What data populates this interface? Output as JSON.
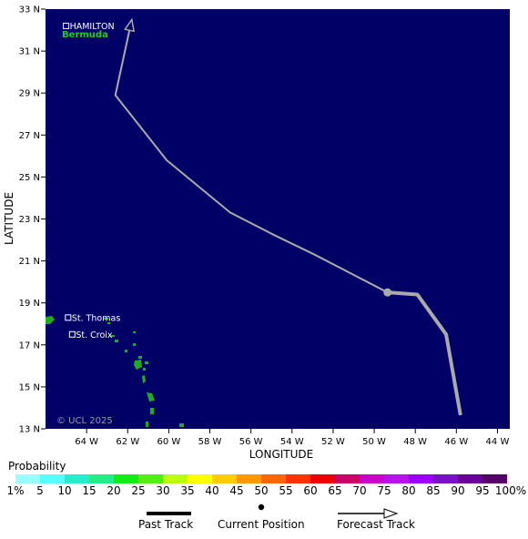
{
  "map": {
    "background": "#000066",
    "x_axis": {
      "title": "LONGITUDE",
      "ticks": [
        {
          "lon": -64,
          "label": "64 W"
        },
        {
          "lon": -62,
          "label": "62 W"
        },
        {
          "lon": -60,
          "label": "60 W"
        },
        {
          "lon": -58,
          "label": "58 W"
        },
        {
          "lon": -56,
          "label": "56 W"
        },
        {
          "lon": -54,
          "label": "54 W"
        },
        {
          "lon": -52,
          "label": "52 W"
        },
        {
          "lon": -50,
          "label": "50 W"
        },
        {
          "lon": -48,
          "label": "48 W"
        },
        {
          "lon": -46,
          "label": "46 W"
        },
        {
          "lon": -44,
          "label": "44 W"
        }
      ],
      "range": [
        -66.0,
        -43.4
      ]
    },
    "y_axis": {
      "title": "LATITUDE",
      "ticks": [
        {
          "lat": 33,
          "label": "33 N"
        },
        {
          "lat": 31,
          "label": "31 N"
        },
        {
          "lat": 29,
          "label": "29 N"
        },
        {
          "lat": 27,
          "label": "27 N"
        },
        {
          "lat": 25,
          "label": "25 N"
        },
        {
          "lat": 23,
          "label": "23 N"
        },
        {
          "lat": 21,
          "label": "21 N"
        },
        {
          "lat": 19,
          "label": "19 N"
        },
        {
          "lat": 17,
          "label": "17 N"
        },
        {
          "lat": 15,
          "label": "15 N"
        },
        {
          "lat": 13,
          "label": "13 N"
        }
      ],
      "range": [
        13,
        33
      ]
    },
    "places": [
      {
        "name": "HAMILTON",
        "lon": -65.0,
        "lat": 32.2
      },
      {
        "name": "St. Thomas",
        "lon": -64.9,
        "lat": 18.3
      },
      {
        "name": "St. Croix",
        "lon": -64.7,
        "lat": 17.5
      }
    ],
    "region_label": {
      "text": "Bermuda",
      "lon": -65.2,
      "lat": 31.65
    },
    "copyright": "© UCL 2025",
    "past_track": [
      [
        -45.8,
        13.65
      ],
      [
        -46.5,
        17.5
      ],
      [
        -47.9,
        19.4
      ],
      [
        -49.35,
        19.5
      ]
    ],
    "current_position": [
      -49.35,
      19.5
    ],
    "forecast_track": [
      [
        -49.35,
        19.5
      ],
      [
        -52.9,
        21.3
      ],
      [
        -54.8,
        22.2
      ],
      [
        -57.0,
        23.3
      ],
      [
        -60.1,
        25.8
      ],
      [
        -62.6,
        28.9
      ],
      [
        -61.8,
        32.5
      ]
    ],
    "track_color": "#aaaaaa"
  },
  "legend": {
    "title": "Probability",
    "colors": [
      "#99ffff",
      "#55ffff",
      "#22eecc",
      "#22ee88",
      "#11ee11",
      "#55ee11",
      "#bbff11",
      "#ffff00",
      "#ffcc00",
      "#ff9900",
      "#ff6600",
      "#ff3300",
      "#ee0000",
      "#cc0066",
      "#cc00cc",
      "#bb11ee",
      "#9900ff",
      "#7711cc",
      "#660099",
      "#550066"
    ],
    "labels": [
      {
        "text": "1%",
        "pos": 0
      },
      {
        "text": "5",
        "pos": 1
      },
      {
        "text": "10",
        "pos": 2
      },
      {
        "text": "15",
        "pos": 3
      },
      {
        "text": "20",
        "pos": 4
      },
      {
        "text": "25",
        "pos": 5
      },
      {
        "text": "30",
        "pos": 6
      },
      {
        "text": "35",
        "pos": 7
      },
      {
        "text": "40",
        "pos": 8
      },
      {
        "text": "45",
        "pos": 9
      },
      {
        "text": "50",
        "pos": 10
      },
      {
        "text": "55",
        "pos": 11
      },
      {
        "text": "60",
        "pos": 12
      },
      {
        "text": "65",
        "pos": 13
      },
      {
        "text": "70",
        "pos": 14
      },
      {
        "text": "75",
        "pos": 15
      },
      {
        "text": "80",
        "pos": 16
      },
      {
        "text": "85",
        "pos": 17
      },
      {
        "text": "90",
        "pos": 18
      },
      {
        "text": "95",
        "pos": 19
      },
      {
        "text": "100%",
        "pos": 20
      }
    ]
  },
  "key": {
    "past_track": "Past Track",
    "current_position": "Current Position",
    "forecast_track": "Forecast Track"
  }
}
